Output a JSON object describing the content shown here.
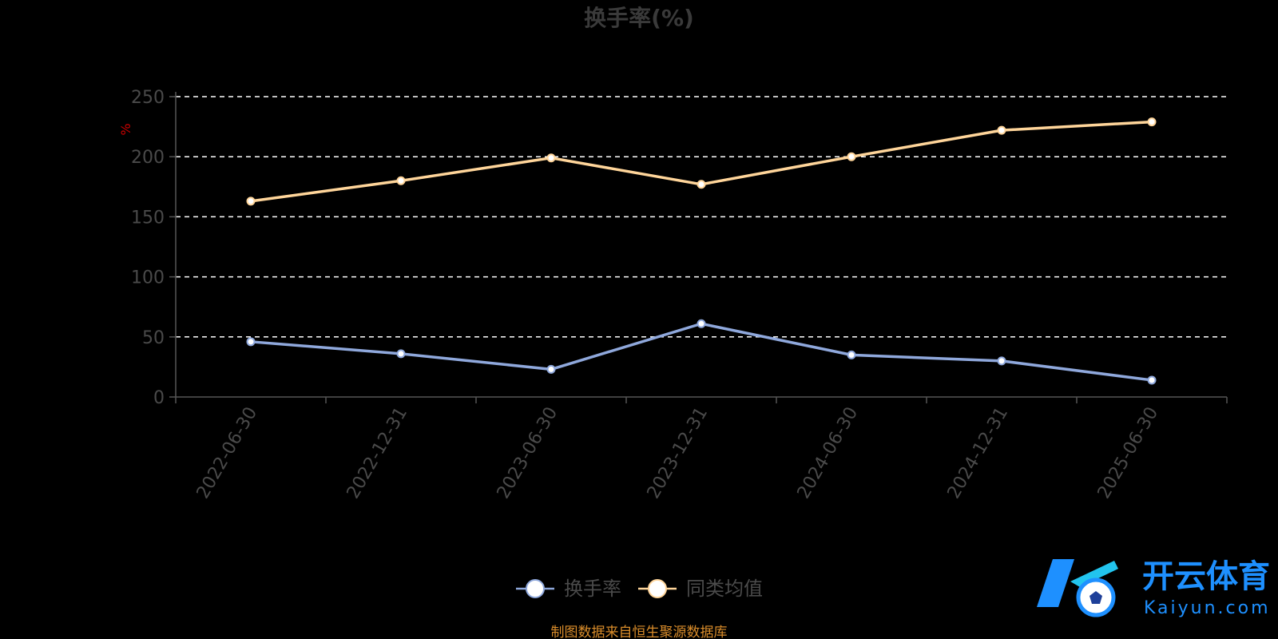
{
  "chart_data": {
    "type": "line",
    "title": "换手率(%)",
    "ylabel": "%",
    "xlabel": "",
    "ylim": [
      0,
      250
    ],
    "yticks": [
      0,
      50,
      100,
      150,
      200,
      250
    ],
    "grid": true,
    "legend_position": "bottom-center",
    "categories": [
      "2022-06-30",
      "2022-12-31",
      "2023-06-30",
      "2023-12-31",
      "2024-06-30",
      "2024-12-31",
      "2025-06-30"
    ],
    "series": [
      {
        "name": "换手率",
        "color": "#8fa8dc",
        "values": [
          46,
          36,
          23,
          61,
          35,
          30,
          14
        ]
      },
      {
        "name": "同类均值",
        "color": "#ffd59a",
        "values": [
          163,
          180,
          199,
          177,
          200,
          222,
          229
        ]
      }
    ]
  },
  "source_note": "制图数据来自恒生聚源数据库",
  "watermark": {
    "name": "开云体育",
    "url_text": "Kaiyun.com",
    "icon": "soccer-ball-k-logo-icon"
  }
}
